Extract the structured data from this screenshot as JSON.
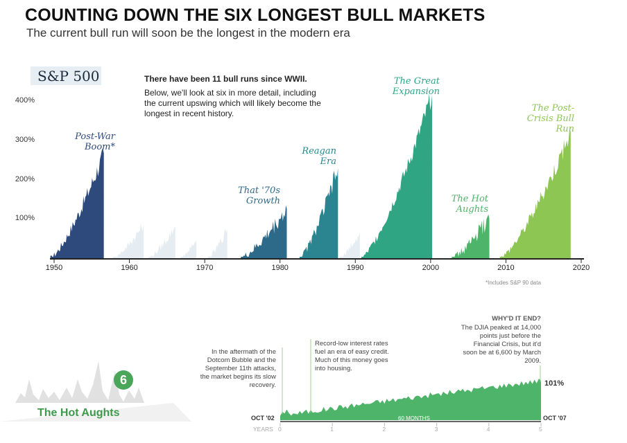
{
  "header": {
    "title": "COUNTING DOWN THE SIX LONGEST BULL MARKETS",
    "subtitle": "The current bull run will soon be the longest in the modern era"
  },
  "badge": "S&P 500",
  "intro": {
    "bold": "There have been 11 bull runs since WWII.",
    "body": "Below, we'll look at six in more detail, including the current upswing which will likely become the longest in recent history."
  },
  "footnote": "*Includes S&P 90 data",
  "chart_data": [
    {
      "type": "area",
      "title": "",
      "xlabel": "",
      "ylabel": "",
      "xlim": [
        1950,
        2020
      ],
      "ylim": [
        0,
        400
      ],
      "x_ticks": [
        "1950",
        "1960",
        "1970",
        "1980",
        "1990",
        "2000",
        "2010",
        "2020"
      ],
      "y_ticks": [
        "100%",
        "200%",
        "300%",
        "400%"
      ],
      "y_tick_values": [
        100,
        200,
        300,
        400
      ],
      "series": [
        {
          "name": "Post-War Boom*",
          "start": 1949.5,
          "end": 1956.6,
          "peak": 267,
          "color": "#2e4a7d",
          "highlight": true
        },
        {
          "start": 1957.8,
          "end": 1961.9,
          "peak": 86,
          "color": "#e6edf2",
          "highlight": false
        },
        {
          "start": 1962.5,
          "end": 1966.1,
          "peak": 80,
          "color": "#e6edf2",
          "highlight": false
        },
        {
          "start": 1966.8,
          "end": 1968.9,
          "peak": 48,
          "color": "#e6edf2",
          "highlight": false
        },
        {
          "start": 1970.4,
          "end": 1973.0,
          "peak": 74,
          "color": "#e6edf2",
          "highlight": false
        },
        {
          "name": "That '70s Growth",
          "start": 1974.8,
          "end": 1980.9,
          "peak": 126,
          "color": "#2d6a8a",
          "highlight": true
        },
        {
          "name": "Reagan Era",
          "start": 1982.6,
          "end": 1987.7,
          "peak": 229,
          "color": "#2a8590",
          "highlight": true
        },
        {
          "start": 1987.9,
          "end": 1990.6,
          "peak": 65,
          "color": "#e6edf2",
          "highlight": false
        },
        {
          "name": "The Great Expansion",
          "start": 1990.8,
          "end": 2000.2,
          "peak": 417,
          "color": "#2fa583",
          "highlight": true
        },
        {
          "name": "The Hot Aughts",
          "start": 2002.8,
          "end": 2007.8,
          "peak": 101,
          "color": "#4eb46a",
          "highlight": true
        },
        {
          "name": "The Post-Crisis Bull Run",
          "start": 2009.2,
          "end": 2018.6,
          "peak": 320,
          "color": "#8ec653",
          "highlight": true
        }
      ]
    },
    {
      "type": "area",
      "title": "The Hot Aughts",
      "badge_number": "6",
      "x_unit": "YEARS",
      "x_ticks": [
        "0",
        "1",
        "2",
        "3",
        "4",
        "5"
      ],
      "start_label": "OCT '02",
      "end_label": "OCT '07",
      "duration_label": "60 MONTHS",
      "final_gain": "101%",
      "color": "#4eb46a",
      "annotations": [
        "In the aftermath of the Dotcom Bubble and the September 11th attacks, the market begins its slow recovery.",
        "Record-low interest rates fuel an era of easy credit. Much of this money goes into housing."
      ],
      "why_heading": "WHY'D IT END?",
      "why_text": "The DJIA peaked at 14,000 points just before the Financial Crisis, but it'd soon be at 6,600 by March 2009."
    }
  ]
}
